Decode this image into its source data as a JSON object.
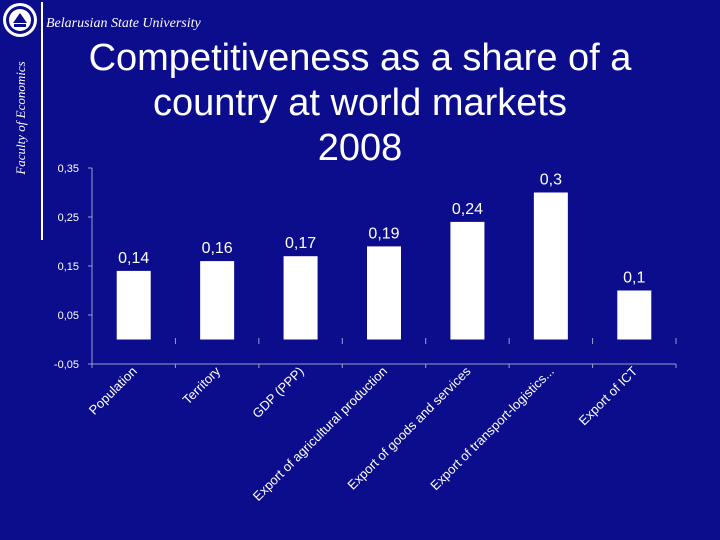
{
  "header": {
    "university": "Belarusian State University",
    "faculty": "Faculty of Economics",
    "title_lines": [
      "Competitiveness as a share of a",
      "country at world markets",
      "2008"
    ]
  },
  "colors": {
    "background": "#0b0d8c",
    "bar": "#ffffff",
    "text": "#ffffff",
    "axis": "#9aa0c8"
  },
  "chart_data": {
    "type": "bar",
    "categories": [
      "Population",
      "Territory",
      "GDP (PPP)",
      "Export of agricultural production",
      "Export of goods and services",
      "Export of transport-logistics...",
      "Export of ICT"
    ],
    "values": [
      0.14,
      0.16,
      0.17,
      0.19,
      0.24,
      0.3,
      0.1
    ],
    "value_labels": [
      "0,14",
      "0,16",
      "0,17",
      "0,19",
      "0,24",
      "0,3",
      "0,1"
    ],
    "yticks": [
      -0.05,
      0.05,
      0.15,
      0.25,
      0.35
    ],
    "ytick_labels": [
      "-0,05",
      "0,05",
      "0,15",
      "0,25",
      "0,35"
    ],
    "ylim": [
      -0.05,
      0.35
    ],
    "grid": false,
    "legend": "none",
    "title": "Competitiveness as a share of a country at world markets 2008"
  }
}
